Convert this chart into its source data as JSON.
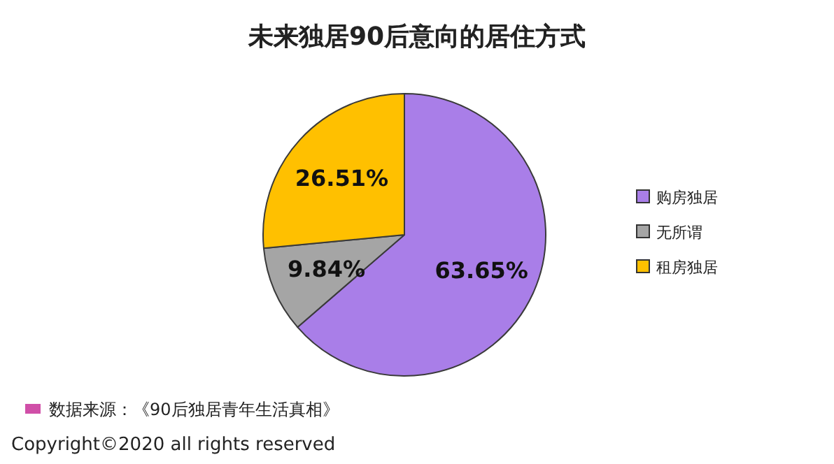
{
  "chart_data": {
    "type": "pie",
    "title": "未来独居90后意向的居住方式",
    "categories": [
      "购房独居",
      "无所谓",
      "租房独居"
    ],
    "values": [
      63.65,
      9.84,
      26.51
    ],
    "colors": [
      "#a97ee8",
      "#a5a5a5",
      "#ffc000"
    ],
    "value_labels": [
      "63.65%",
      "9.84%",
      "26.51%"
    ],
    "legend": "right",
    "annotations": [
      "数据来源：《90后独居青年生活真相》",
      "Copyright©2020 all rights reserved"
    ]
  }
}
